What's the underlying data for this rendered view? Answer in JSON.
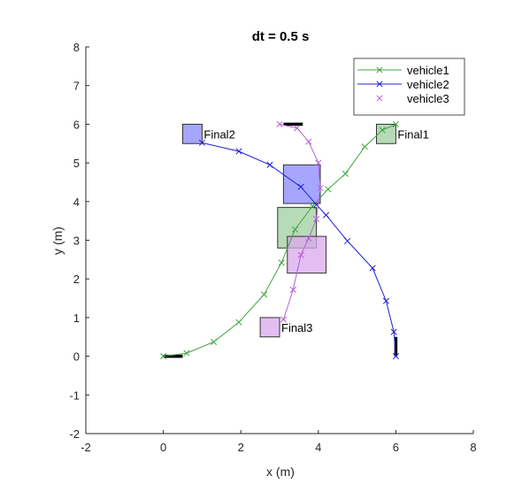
{
  "chart_data": {
    "type": "line",
    "title": "dt = 0.5 s",
    "xlabel": "x (m)",
    "ylabel": "y (m)",
    "xlim": [
      -2,
      8
    ],
    "ylim": [
      -2,
      8
    ],
    "xticks": [
      "-2",
      "0",
      "2",
      "4",
      "6",
      "8"
    ],
    "yticks": [
      "-2",
      "-1",
      "0",
      "1",
      "2",
      "3",
      "4",
      "5",
      "6",
      "7",
      "8"
    ],
    "grid": false,
    "legend_position": "top-right",
    "series": [
      {
        "name": "vehicle1",
        "color": "#3fa33f",
        "marker": "x",
        "x": [
          0,
          0.6,
          1.3,
          1.95,
          2.6,
          3.05,
          3.4,
          3.85,
          4.25,
          4.7,
          5.2,
          5.65,
          6.0
        ],
        "y": [
          0,
          0.08,
          0.37,
          0.88,
          1.6,
          2.42,
          3.28,
          3.88,
          4.32,
          4.72,
          5.42,
          5.85,
          6.0
        ]
      },
      {
        "name": "vehicle2",
        "color": "#1f1fd6",
        "marker": "x",
        "x": [
          6.0,
          5.95,
          5.75,
          5.4,
          4.75,
          4.2,
          3.95,
          3.55,
          2.75,
          1.95,
          1.0
        ],
        "y": [
          0,
          0.63,
          1.43,
          2.28,
          2.98,
          3.65,
          3.92,
          4.38,
          4.95,
          5.3,
          5.52
        ]
      },
      {
        "name": "vehicle3",
        "color": "#b55fd6",
        "marker": "x",
        "x": [
          3.0,
          3.45,
          3.75,
          4.0,
          4.05,
          3.95,
          3.75,
          3.55,
          3.35,
          3.1
        ],
        "y": [
          6.0,
          5.9,
          5.55,
          5.0,
          4.35,
          3.55,
          3.05,
          2.62,
          1.72,
          0.95
        ]
      }
    ],
    "boxes": [
      {
        "label": "",
        "color": "#8888ff",
        "x": [
          3.1,
          4.05
        ],
        "y": [
          3.95,
          4.95
        ]
      },
      {
        "label": "",
        "color": "#9fcf9f",
        "x": [
          2.95,
          3.95
        ],
        "y": [
          2.8,
          3.85
        ]
      },
      {
        "label": "",
        "color": "#d9a8ec",
        "x": [
          3.2,
          4.2
        ],
        "y": [
          2.15,
          3.1
        ]
      },
      {
        "label": "Final2",
        "color": "#8888ff",
        "x": [
          0.5,
          1.0
        ],
        "y": [
          5.5,
          6.0
        ]
      },
      {
        "label": "Final1",
        "color": "#9fcf9f",
        "x": [
          5.5,
          6.0
        ],
        "y": [
          5.5,
          6.0
        ]
      },
      {
        "label": "Final3",
        "color": "#d9a8ec",
        "x": [
          2.5,
          3.0
        ],
        "y": [
          0.5,
          1.0
        ]
      }
    ],
    "start_bars": [
      {
        "x": [
          0.0,
          0.5
        ],
        "y": [
          0,
          0
        ]
      },
      {
        "x": [
          6.0,
          6.0
        ],
        "y": [
          0,
          0.5
        ]
      },
      {
        "x": [
          3.1,
          3.6
        ],
        "y": [
          6.0,
          6.0
        ]
      }
    ]
  }
}
